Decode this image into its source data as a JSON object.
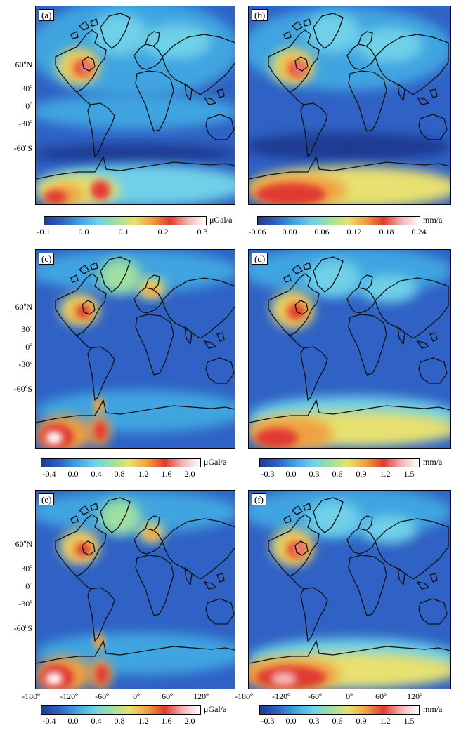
{
  "panels": [
    {
      "label": "(a)"
    },
    {
      "label": "(b)"
    },
    {
      "label": "(c)"
    },
    {
      "label": "(d)"
    },
    {
      "label": "(e)"
    },
    {
      "label": "(f)"
    }
  ],
  "lat_labels": [
    "60ºN",
    "30º",
    "0º",
    "-30º",
    "-60ºS"
  ],
  "lon_labels": [
    "-180º",
    "-120º",
    "-60º",
    "0º",
    "60º",
    "120º"
  ],
  "colorbars": [
    {
      "unit": "μGal/a",
      "ticks": [
        "-0.1",
        "0.0",
        "0.1",
        "0.2",
        "0.3"
      ]
    },
    {
      "unit": "mm/a",
      "ticks": [
        "-0.06",
        "0.00",
        "0.06",
        "0.12",
        "0.18",
        "0.24"
      ]
    },
    {
      "unit": "μGal/a",
      "ticks": [
        "-0.4",
        "0.0",
        "0.4",
        "0.8",
        "1.2",
        "1.6",
        "2.0"
      ]
    },
    {
      "unit": "mm/a",
      "ticks": [
        "-0.3",
        "0.0",
        "0.3",
        "0.6",
        "0.9",
        "1.2",
        "1.5"
      ]
    },
    {
      "unit": "μGal/a",
      "ticks": [
        "-0.4",
        "0.0",
        "0.4",
        "0.8",
        "1.2",
        "1.6",
        "2.0"
      ]
    },
    {
      "unit": "mm/a",
      "ticks": [
        "-0.3",
        "0.0",
        "0.3",
        "0.6",
        "0.9",
        "1.2",
        "1.5"
      ]
    }
  ],
  "colormap": [
    "#1f3a93",
    "#2f62c4",
    "#3fa4e0",
    "#6fd0e8",
    "#9fe0a0",
    "#e8e070",
    "#f0a040",
    "#e03a30",
    "#f4b4b4",
    "#ffffff"
  ]
}
